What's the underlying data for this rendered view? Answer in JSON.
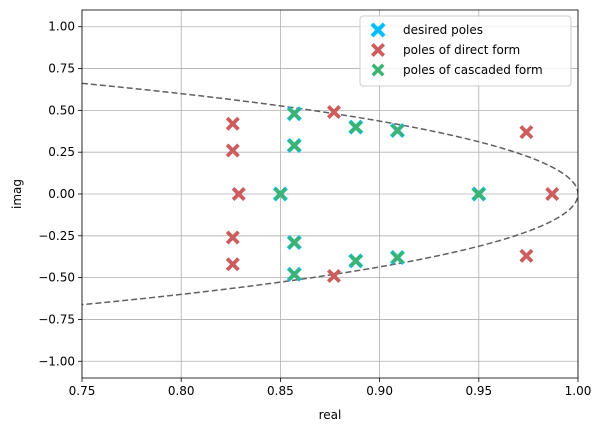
{
  "chart_data": {
    "type": "scatter",
    "title": "",
    "xlabel": "real",
    "ylabel": "imag",
    "xlim": [
      0.75,
      1.0
    ],
    "ylim": [
      -1.1,
      1.1
    ],
    "grid": true,
    "legend_position": "top-right",
    "xticks": [
      "0.75",
      "0.80",
      "0.85",
      "0.90",
      "0.95",
      "1.00"
    ],
    "xtick_values": [
      0.75,
      0.8,
      0.85,
      0.9,
      0.95,
      1.0
    ],
    "yticks": [
      "−1.00",
      "−0.75",
      "−0.50",
      "−0.25",
      "0.00",
      "0.25",
      "0.50",
      "0.75",
      "1.00"
    ],
    "ytick_values": [
      -1.0,
      -0.75,
      -0.5,
      -0.25,
      0.0,
      0.25,
      0.5,
      0.75,
      1.0
    ],
    "series": [
      {
        "name": "desired poles",
        "color": "#00bfff",
        "marker": "X",
        "points": [
          [
            0.95,
            0.0
          ],
          [
            0.85,
            0.0
          ],
          [
            0.857,
            0.48
          ],
          [
            0.857,
            -0.48
          ],
          [
            0.857,
            0.29
          ],
          [
            0.857,
            -0.29
          ],
          [
            0.888,
            0.4
          ],
          [
            0.888,
            -0.4
          ],
          [
            0.909,
            0.38
          ],
          [
            0.909,
            -0.38
          ]
        ]
      },
      {
        "name": "poles of direct form",
        "color": "#cd5c5c",
        "marker": "X",
        "points": [
          [
            0.987,
            0.0
          ],
          [
            0.974,
            0.37
          ],
          [
            0.974,
            -0.37
          ],
          [
            0.829,
            0.0
          ],
          [
            0.826,
            0.42
          ],
          [
            0.826,
            -0.42
          ],
          [
            0.826,
            0.26
          ],
          [
            0.826,
            -0.26
          ],
          [
            0.877,
            0.49
          ],
          [
            0.877,
            -0.49
          ]
        ]
      },
      {
        "name": "poles of cascaded form",
        "color": "#3cb371",
        "marker": "X",
        "points": [
          [
            0.95,
            0.0
          ],
          [
            0.85,
            0.0
          ],
          [
            0.857,
            0.48
          ],
          [
            0.857,
            -0.48
          ],
          [
            0.857,
            0.29
          ],
          [
            0.857,
            -0.29
          ],
          [
            0.888,
            0.4
          ],
          [
            0.888,
            -0.4
          ],
          [
            0.909,
            0.38
          ],
          [
            0.909,
            -0.38
          ]
        ]
      }
    ],
    "unit_circle": {
      "color": "#606060",
      "style": "dashed",
      "radius": 1.0
    }
  }
}
